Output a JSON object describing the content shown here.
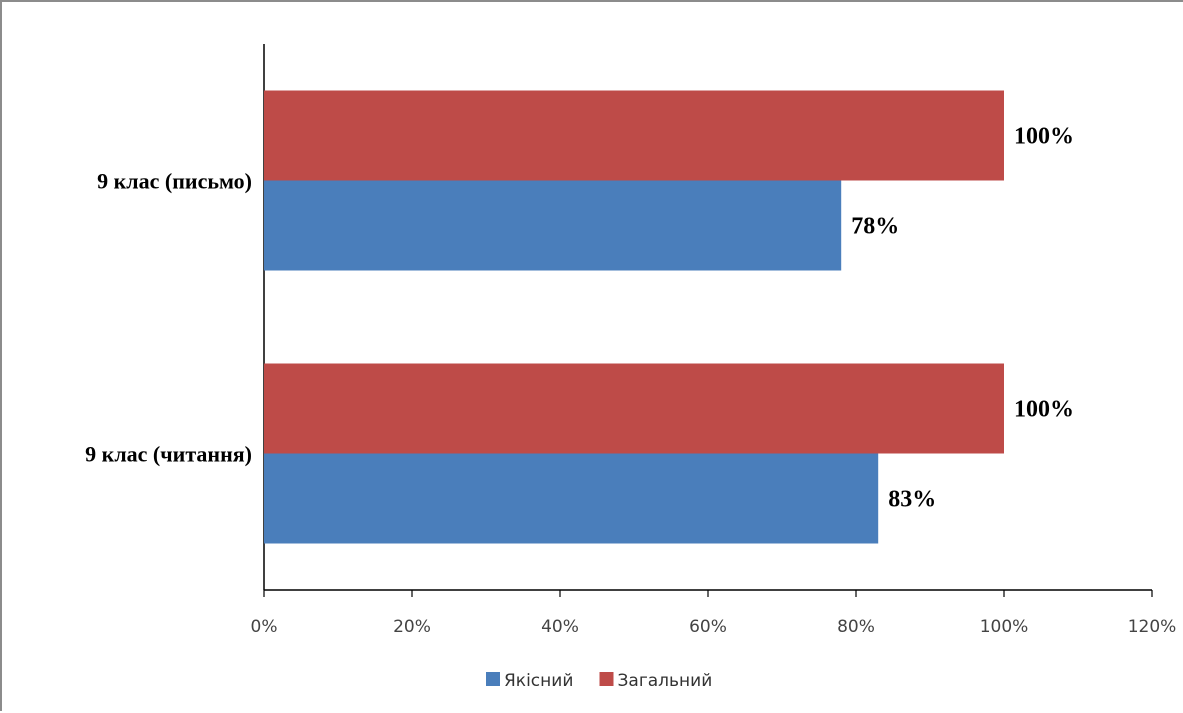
{
  "chart_data": {
    "type": "bar",
    "orientation": "horizontal",
    "categories": [
      "9 клас (читання)",
      "9 клас (письмо)"
    ],
    "series": [
      {
        "name": "Якісний",
        "values": [
          83,
          78
        ],
        "labels": [
          "83%",
          "78%"
        ],
        "color": "#4a7ebb"
      },
      {
        "name": "Загальний",
        "values": [
          100,
          100
        ],
        "labels": [
          "100%",
          "100%"
        ],
        "color": "#be4b48"
      }
    ],
    "xlim": [
      0,
      120
    ],
    "xticks": [
      "0%",
      "20%",
      "40%",
      "60%",
      "80%",
      "100%",
      "120%"
    ],
    "grid": false,
    "legend_position": "bottom"
  }
}
